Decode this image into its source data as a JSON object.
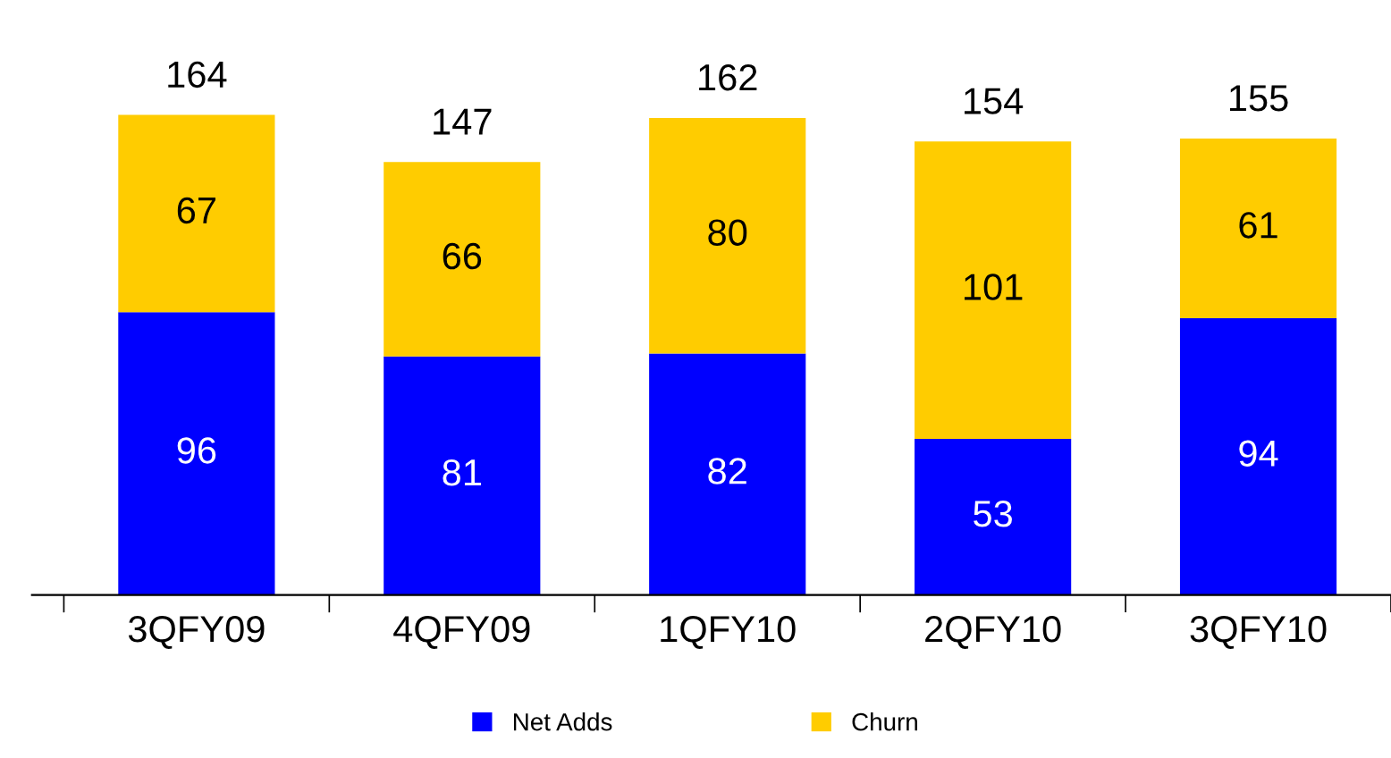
{
  "chart_data": {
    "type": "bar",
    "stacked": true,
    "categories": [
      "3QFY09",
      "4QFY09",
      "1QFY10",
      "2QFY10",
      "3QFY10"
    ],
    "series": [
      {
        "name": "Net Adds",
        "color": "#0000ff",
        "values": [
          96,
          81,
          82,
          53,
          94
        ]
      },
      {
        "name": "Churn",
        "color": "#ffcc00",
        "values": [
          67,
          66,
          80,
          101,
          61
        ]
      }
    ],
    "data_labels": true,
    "totals": [
      "164",
      "147",
      "162",
      "154",
      "155"
    ],
    "legend": "bottom"
  }
}
